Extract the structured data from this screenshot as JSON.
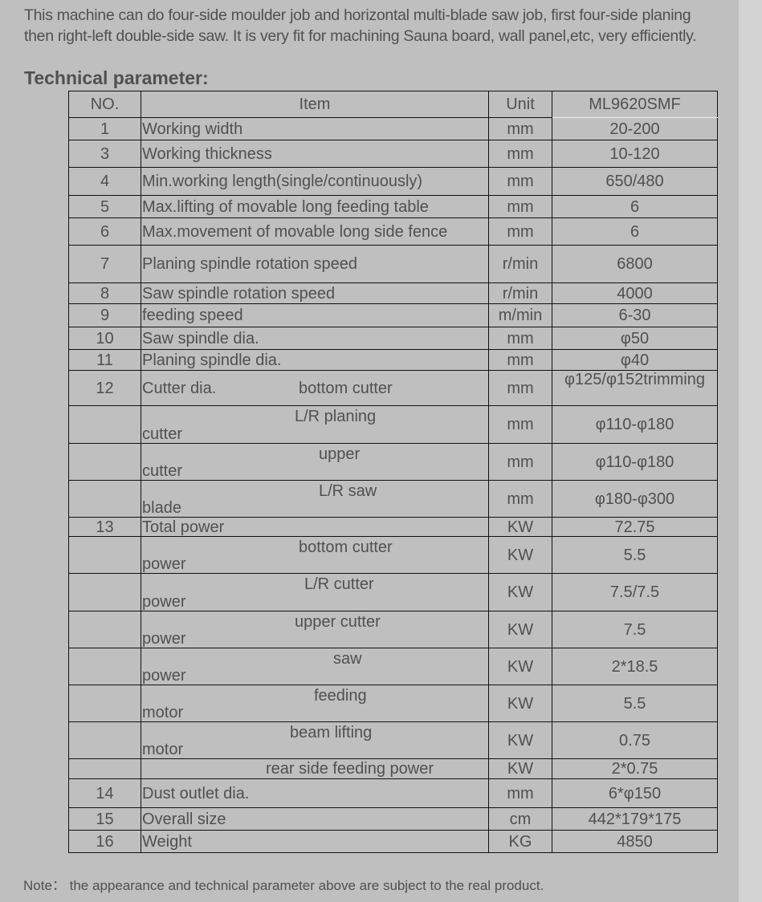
{
  "intro": {
    "cut_line": "…",
    "text": "This machine can do four-side moulder job and horizontal multi-blade saw job, first four-side planing then right-left double-side saw. It is very fit for machining Sauna board, wall panel,etc, very efficiently."
  },
  "title": "Technical parameter:",
  "table": {
    "headers": [
      "NO.",
      "Item",
      "Unit",
      "ML9620SMF"
    ],
    "rows": [
      {
        "no": "1",
        "item": "Working width",
        "unit": "mm",
        "value": "20-200"
      },
      {
        "no": "3",
        "item": "Working thickness",
        "unit": "mm",
        "value": "10-120"
      },
      {
        "no": "4",
        "item": "Min.working length(single/continuously)",
        "unit": "mm",
        "value": "650/480"
      },
      {
        "no": "5",
        "item": "Max.lifting of movable long feeding table",
        "unit": "mm",
        "value": "6"
      },
      {
        "no": "6",
        "item": "Max.movement of movable long side fence",
        "unit": "mm",
        "value": "6"
      },
      {
        "no": "7",
        "item": "Planing spindle rotation speed",
        "unit": "r/min",
        "value": "6800"
      },
      {
        "no": "8",
        "item": "Saw spindle rotation speed",
        "unit": "r/min",
        "value": "4000"
      },
      {
        "no": "9",
        "item": "feeding speed",
        "unit": "m/min",
        "value": "6-30"
      },
      {
        "no": "10",
        "item": "Saw spindle dia.",
        "unit": "mm",
        "value": "φ50"
      },
      {
        "no": "11",
        "item": "Planing spindle dia.",
        "unit": "mm",
        "value": "φ40"
      },
      {
        "no": "12",
        "item": "Cutter dia.",
        "sub": "bottom cutter",
        "unit": "mm",
        "value": "φ125/φ152trimming"
      },
      {
        "no": "",
        "sub": "L/R planing",
        "low": "cutter",
        "unit": "mm",
        "value": "φ110-φ180"
      },
      {
        "no": "",
        "sub": "upper",
        "low": "cutter",
        "unit": "mm",
        "value": "φ110-φ180"
      },
      {
        "no": "",
        "sub": "L/R saw",
        "low": "blade",
        "unit": "mm",
        "value": "φ180-φ300"
      },
      {
        "no": "13",
        "item": "Total power",
        "unit": "KW",
        "value": "72.75"
      },
      {
        "no": "",
        "sub": "bottom cutter",
        "low": "power",
        "unit": "KW",
        "value": "5.5"
      },
      {
        "no": "",
        "sub": "L/R cutter",
        "low": "power",
        "unit": "KW",
        "value": "7.5/7.5"
      },
      {
        "no": "",
        "sub": "upper cutter",
        "low": "power",
        "unit": "KW",
        "value": "7.5"
      },
      {
        "no": "",
        "sub": "saw",
        "low": "power",
        "unit": "KW",
        "value": "2*18.5"
      },
      {
        "no": "",
        "sub": "feeding",
        "low": "motor",
        "unit": "KW",
        "value": "5.5"
      },
      {
        "no": "",
        "sub": "beam lifting",
        "low": "motor",
        "unit": "KW",
        "value": "0.75"
      },
      {
        "no": "",
        "sub": "rear side feeding power",
        "unit": "KW",
        "value": "2*0.75"
      },
      {
        "no": "14",
        "item": "Dust outlet dia.",
        "unit": "mm",
        "value": "6*φ150"
      },
      {
        "no": "15",
        "item": "Overall size",
        "unit": "cm",
        "value": "442*179*175"
      },
      {
        "no": "16",
        "item": "Weight",
        "unit": "KG",
        "value": "4850"
      }
    ]
  },
  "note": "Note：  the appearance and technical parameter above are subject to the real product."
}
